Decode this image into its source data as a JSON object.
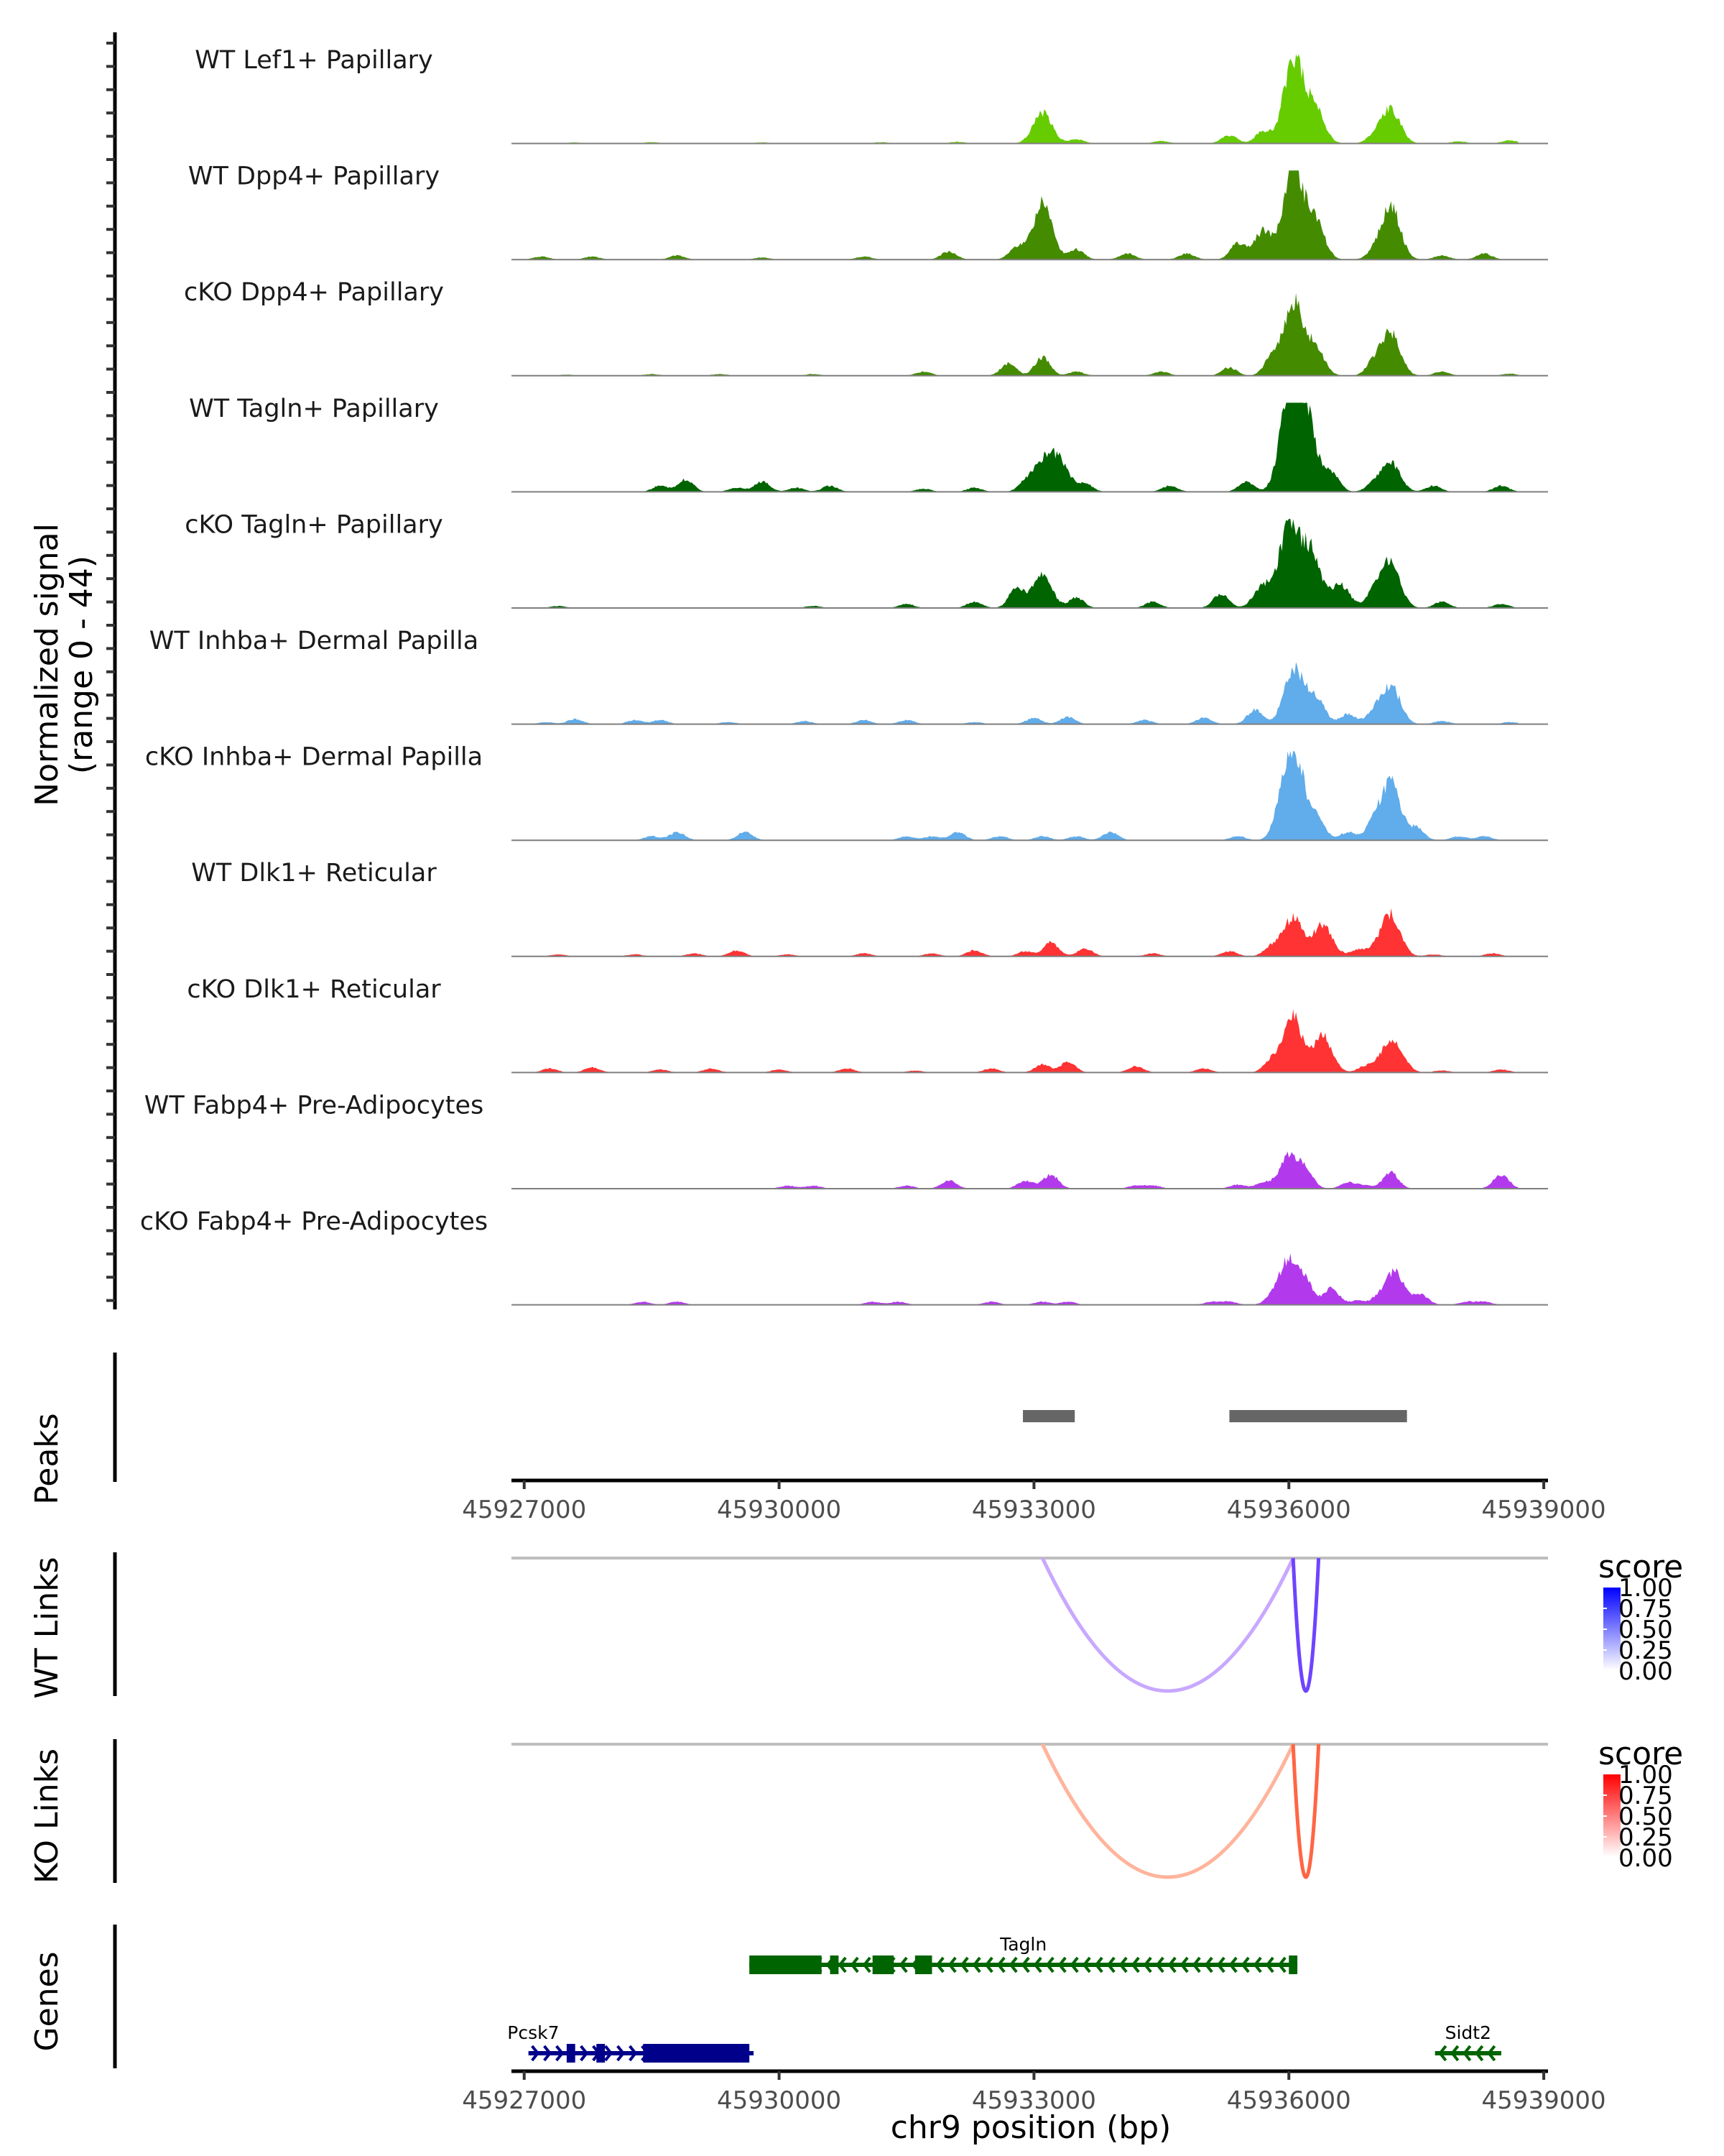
{
  "chart_data": {
    "type": "area",
    "title": "",
    "xlabel": "chr9 position (bp)",
    "ylabel": "Normalized signal\n(range 0 - 44)",
    "ylabel_lines": [
      "Normalized signal",
      "(range 0 - 44)"
    ],
    "ylim": [
      0,
      44
    ],
    "xlim": [
      45926850,
      45939050
    ],
    "x_ticks": [
      45927000,
      45930000,
      45933000,
      45936000,
      45939000
    ],
    "x_tick_labels": [
      "45927000",
      "45930000",
      "45933000",
      "45936000",
      "45939000"
    ],
    "coverage_tracks": [
      {
        "name": "WT Lef1+ Papillary",
        "color": "#66CC00",
        "peaks": [
          [
            45927600,
            0.5
          ],
          [
            45928500,
            0.6
          ],
          [
            45929800,
            0.5
          ],
          [
            45931200,
            0.6
          ],
          [
            45932100,
            0.8
          ],
          [
            45933100,
            15
          ],
          [
            45933500,
            2
          ],
          [
            45934500,
            1.2
          ],
          [
            45935300,
            4
          ],
          [
            45935700,
            6
          ],
          [
            45936050,
            42
          ],
          [
            45936300,
            18
          ],
          [
            45937000,
            3
          ],
          [
            45937200,
            17
          ],
          [
            45938000,
            1
          ],
          [
            45938600,
            1.5
          ]
        ]
      },
      {
        "name": "WT Dpp4+ Papillary",
        "color": "#448B00",
        "peaks": [
          [
            45927200,
            1.5
          ],
          [
            45927800,
            1.5
          ],
          [
            45928800,
            2
          ],
          [
            45929800,
            1
          ],
          [
            45931000,
            1.5
          ],
          [
            45932000,
            4
          ],
          [
            45932800,
            6
          ],
          [
            45933100,
            28
          ],
          [
            45933500,
            5
          ],
          [
            45934100,
            3
          ],
          [
            45934800,
            3
          ],
          [
            45935400,
            8
          ],
          [
            45935700,
            14
          ],
          [
            45936050,
            44
          ],
          [
            45936300,
            20
          ],
          [
            45937000,
            3
          ],
          [
            45937200,
            26
          ],
          [
            45937800,
            2
          ],
          [
            45938300,
            3
          ]
        ]
      },
      {
        "name": "cKO Dpp4+ Papillary",
        "color": "#448B00",
        "peaks": [
          [
            45927500,
            0.5
          ],
          [
            45928500,
            0.8
          ],
          [
            45929300,
            0.8
          ],
          [
            45930400,
            0.8
          ],
          [
            45931700,
            2
          ],
          [
            45932700,
            6
          ],
          [
            45933100,
            9
          ],
          [
            45933500,
            2
          ],
          [
            45934500,
            2
          ],
          [
            45935300,
            4
          ],
          [
            45935800,
            9
          ],
          [
            45936050,
            36
          ],
          [
            45936300,
            14
          ],
          [
            45937000,
            6
          ],
          [
            45937200,
            21
          ],
          [
            45937800,
            2
          ],
          [
            45938600,
            1
          ]
        ]
      },
      {
        "name": "WT Tagln+ Papillary",
        "color": "#006400",
        "peaks": [
          [
            45928600,
            3
          ],
          [
            45928900,
            6
          ],
          [
            45929500,
            2
          ],
          [
            45929800,
            5
          ],
          [
            45930200,
            2
          ],
          [
            45930600,
            3
          ],
          [
            45931700,
            1.5
          ],
          [
            45932300,
            2
          ],
          [
            45932900,
            4
          ],
          [
            45933100,
            14
          ],
          [
            45933300,
            15
          ],
          [
            45933600,
            4
          ],
          [
            45934600,
            3
          ],
          [
            45935500,
            5
          ],
          [
            45936000,
            44
          ],
          [
            45936200,
            40
          ],
          [
            45936500,
            10
          ],
          [
            45937000,
            4
          ],
          [
            45937200,
            14
          ],
          [
            45937700,
            3
          ],
          [
            45938500,
            3
          ]
        ]
      },
      {
        "name": "cKO Tagln+ Papillary",
        "color": "#006400",
        "peaks": [
          [
            45927400,
            1
          ],
          [
            45930400,
            1
          ],
          [
            45931500,
            2
          ],
          [
            45932300,
            3
          ],
          [
            45932800,
            10
          ],
          [
            45933100,
            16
          ],
          [
            45933500,
            5
          ],
          [
            45934400,
            3
          ],
          [
            45935200,
            7
          ],
          [
            45935700,
            11
          ],
          [
            45936000,
            40
          ],
          [
            45936250,
            28
          ],
          [
            45936600,
            12
          ],
          [
            45937000,
            8
          ],
          [
            45937200,
            23
          ],
          [
            45937800,
            3
          ],
          [
            45938500,
            2
          ]
        ]
      },
      {
        "name": "WT Inhba+ Dermal Papilla",
        "color": "#61ACEA",
        "peaks": [
          [
            45927250,
            1
          ],
          [
            45927600,
            2.5
          ],
          [
            45928300,
            2
          ],
          [
            45928600,
            2
          ],
          [
            45929400,
            1
          ],
          [
            45930300,
            1.5
          ],
          [
            45931000,
            2
          ],
          [
            45931500,
            2
          ],
          [
            45932300,
            1
          ],
          [
            45933000,
            3
          ],
          [
            45933400,
            3.5
          ],
          [
            45934300,
            2
          ],
          [
            45935000,
            3
          ],
          [
            45935600,
            7
          ],
          [
            45936050,
            27
          ],
          [
            45936300,
            14
          ],
          [
            45936700,
            5
          ],
          [
            45937000,
            5
          ],
          [
            45937200,
            19
          ],
          [
            45937800,
            1.5
          ],
          [
            45938600,
            1
          ]
        ]
      },
      {
        "name": "cKO Inhba+ Dermal Papilla",
        "color": "#61ACEA",
        "peaks": [
          [
            45928500,
            2
          ],
          [
            45928800,
            4
          ],
          [
            45929600,
            4
          ],
          [
            45931500,
            2
          ],
          [
            45931800,
            2
          ],
          [
            45932100,
            4
          ],
          [
            45932600,
            2
          ],
          [
            45933100,
            2
          ],
          [
            45933500,
            2
          ],
          [
            45933900,
            4
          ],
          [
            45935400,
            2
          ],
          [
            45935900,
            10
          ],
          [
            45936050,
            44
          ],
          [
            45936300,
            12
          ],
          [
            45936700,
            4
          ],
          [
            45937000,
            8
          ],
          [
            45937200,
            28
          ],
          [
            45937500,
            6
          ],
          [
            45938000,
            2
          ],
          [
            45938300,
            2
          ]
        ]
      },
      {
        "name": "WT Dlk1+ Reticular",
        "color": "#FF3333",
        "peaks": [
          [
            45927400,
            1
          ],
          [
            45928300,
            1
          ],
          [
            45929000,
            1.5
          ],
          [
            45929500,
            3
          ],
          [
            45930100,
            1
          ],
          [
            45931000,
            1.5
          ],
          [
            45931800,
            1.5
          ],
          [
            45932300,
            3
          ],
          [
            45932900,
            2.5
          ],
          [
            45933200,
            7
          ],
          [
            45933600,
            4
          ],
          [
            45934400,
            1.5
          ],
          [
            45935300,
            2.5
          ],
          [
            45935800,
            5
          ],
          [
            45936050,
            19
          ],
          [
            45936400,
            16
          ],
          [
            45936800,
            3
          ],
          [
            45937000,
            3
          ],
          [
            45937200,
            21
          ],
          [
            45937700,
            1
          ],
          [
            45938400,
            1.5
          ]
        ]
      },
      {
        "name": "cKO Dlk1+ Reticular",
        "color": "#FF3333",
        "peaks": [
          [
            45927300,
            2
          ],
          [
            45927800,
            2.5
          ],
          [
            45928600,
            1.5
          ],
          [
            45929200,
            2
          ],
          [
            45930000,
            1.5
          ],
          [
            45930800,
            2
          ],
          [
            45931600,
            1
          ],
          [
            45932500,
            2
          ],
          [
            45933100,
            4
          ],
          [
            45933400,
            5
          ],
          [
            45934200,
            3
          ],
          [
            45935000,
            2
          ],
          [
            45935800,
            6
          ],
          [
            45936050,
            27
          ],
          [
            45936400,
            18
          ],
          [
            45936900,
            3
          ],
          [
            45937100,
            6
          ],
          [
            45937250,
            13
          ],
          [
            45937800,
            1
          ],
          [
            45938500,
            1.5
          ]
        ]
      },
      {
        "name": "WT Fabp4+ Pre-Adipocytes",
        "color": "#B33AEC",
        "peaks": [
          [
            45930100,
            1.5
          ],
          [
            45930400,
            1.5
          ],
          [
            45931500,
            1.5
          ],
          [
            45932000,
            4
          ],
          [
            45932900,
            4
          ],
          [
            45933200,
            7
          ],
          [
            45934200,
            1.5
          ],
          [
            45934400,
            1.5
          ],
          [
            45935400,
            2
          ],
          [
            45935700,
            3
          ],
          [
            45936000,
            16
          ],
          [
            45936200,
            8
          ],
          [
            45936700,
            3
          ],
          [
            45936900,
            1.5
          ],
          [
            45937200,
            8
          ],
          [
            45938500,
            7
          ]
        ]
      },
      {
        "name": "cKO Fabp4+ Pre-Adipocytes",
        "color": "#B33AEC",
        "peaks": [
          [
            45928400,
            1.5
          ],
          [
            45928800,
            1.5
          ],
          [
            45931100,
            1.5
          ],
          [
            45931400,
            1.5
          ],
          [
            45932500,
            1.5
          ],
          [
            45933100,
            1.5
          ],
          [
            45933400,
            1.5
          ],
          [
            45935100,
            1.5
          ],
          [
            45935300,
            1.5
          ],
          [
            45935800,
            3
          ],
          [
            45936000,
            22
          ],
          [
            45936200,
            10
          ],
          [
            45936500,
            8
          ],
          [
            45936800,
            2
          ],
          [
            45937050,
            3
          ],
          [
            45937250,
            16
          ],
          [
            45937550,
            5
          ],
          [
            45938100,
            1.5
          ],
          [
            45938300,
            1.5
          ]
        ]
      }
    ],
    "peaks_track": {
      "label": "Peaks",
      "color": "#666666",
      "regions": [
        [
          45932870,
          45933480
        ],
        [
          45935300,
          45937390
        ]
      ]
    },
    "link_tracks": [
      {
        "label": "WT Links",
        "legend_title": "score",
        "color_low": "#FFFFFF",
        "color_high": "#0000FF",
        "legend_ticks": [
          "1.00",
          "0.75",
          "0.50",
          "0.25",
          "0.00"
        ],
        "links": [
          {
            "start": 45933100,
            "end": 45936050,
            "score": 0.35,
            "color": "#C8A8FF"
          },
          {
            "start": 45936050,
            "end": 45936350,
            "score": 0.75,
            "color": "#6E44FF"
          }
        ]
      },
      {
        "label": "KO Links",
        "legend_title": "score",
        "color_low": "#FFFFFF",
        "color_high": "#FF0000",
        "legend_ticks": [
          "1.00",
          "0.75",
          "0.50",
          "0.25",
          "0.00"
        ],
        "links": [
          {
            "start": 45933100,
            "end": 45936050,
            "score": 0.35,
            "color": "#FFB49C"
          },
          {
            "start": 45936050,
            "end": 45936350,
            "score": 0.75,
            "color": "#FF6644"
          }
        ]
      }
    ],
    "genes_track": {
      "label": "Genes",
      "genes": [
        {
          "name": "Tagln",
          "strand": "-",
          "color": "#006400",
          "row": 0,
          "start": 45929650,
          "end": 45936100,
          "exons": [
            [
              45929650,
              45930500
            ],
            [
              45930600,
              45930700
            ],
            [
              45931100,
              45931350
            ],
            [
              45931600,
              45931800
            ],
            [
              45936000,
              45936100
            ]
          ]
        },
        {
          "name": "Pcsk7",
          "strand": "+",
          "color": "#00008B",
          "row": 1,
          "start": 45927050,
          "end": 45929700,
          "exons": [
            [
              45927500,
              45927600
            ],
            [
              45927850,
              45927950
            ],
            [
              45928400,
              45929650
            ]
          ]
        },
        {
          "name": "Sidt2",
          "strand": "-",
          "color": "#006400",
          "row": 1,
          "start": 45937720,
          "end": 45938500,
          "exons": []
        }
      ]
    }
  }
}
